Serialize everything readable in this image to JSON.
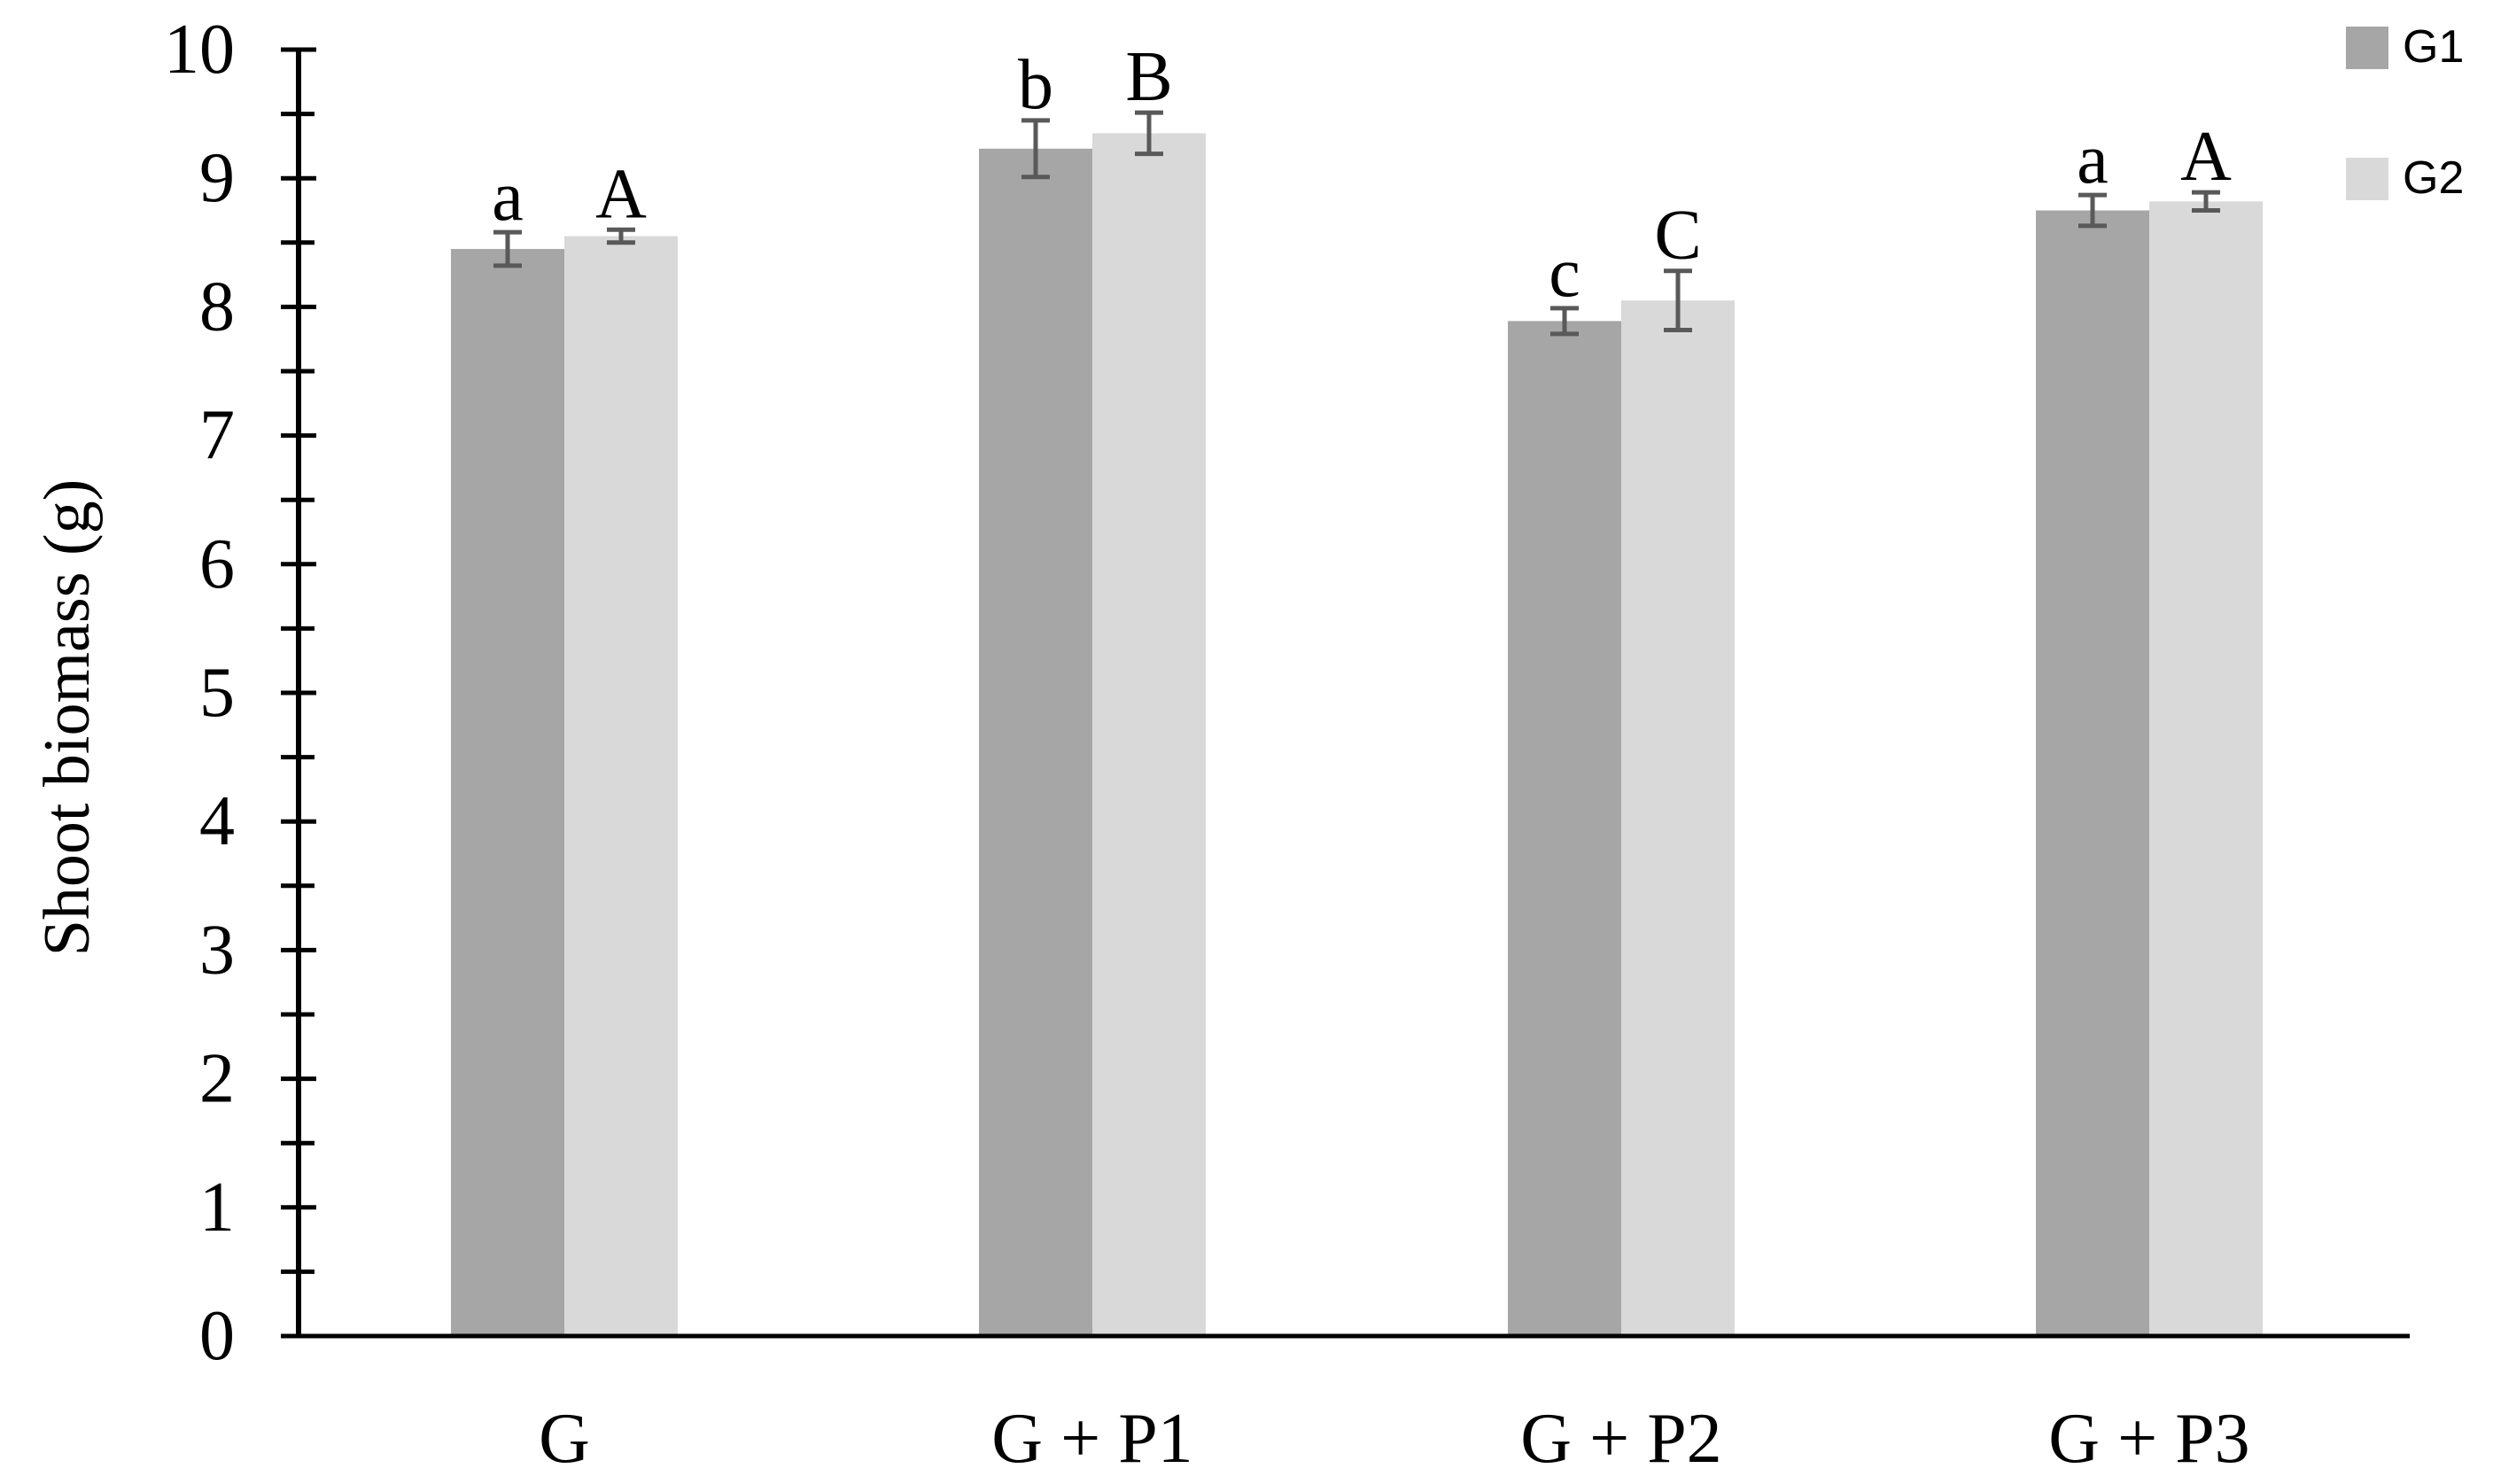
{
  "chart_data": {
    "type": "bar",
    "title": "",
    "xlabel": "",
    "ylabel": "Shoot biomass (g)",
    "ylim": [
      0,
      10
    ],
    "yticks": [
      0,
      1,
      2,
      3,
      4,
      5,
      6,
      7,
      8,
      9,
      10
    ],
    "minor_tick_step": 0.5,
    "grid": false,
    "legend_position": "top-right",
    "categories": [
      "G",
      "G + P1",
      "G + P2",
      "G + P3"
    ],
    "series": [
      {
        "name": "G1",
        "color": "#a6a6a6",
        "values": [
          8.45,
          9.23,
          7.89,
          8.75
        ],
        "errors": [
          0.13,
          0.22,
          0.1,
          0.12
        ],
        "letters": [
          "a",
          "b",
          "c",
          "a"
        ]
      },
      {
        "name": "G2",
        "color": "#d9d9d9",
        "values": [
          8.55,
          9.35,
          8.05,
          8.82
        ],
        "errors": [
          0.05,
          0.16,
          0.23,
          0.07
        ],
        "letters": [
          "A",
          "B",
          "C",
          "A"
        ]
      }
    ],
    "axis_color": "#000000",
    "error_bar_color": "#595959"
  }
}
